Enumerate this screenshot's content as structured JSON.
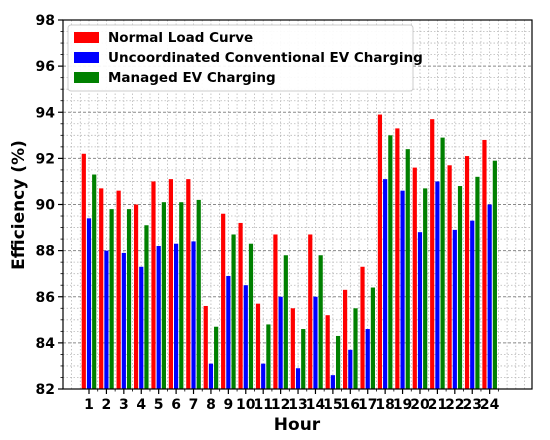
{
  "chart_data": {
    "type": "bar",
    "title": "",
    "xlabel": "Hour",
    "ylabel": "Efficiency (%)",
    "ylim": [
      82,
      98
    ],
    "yticks": [
      82,
      84,
      86,
      88,
      90,
      92,
      94,
      96,
      98
    ],
    "grid": true,
    "legend_position": "top-left",
    "categories": [
      "1",
      "2",
      "3",
      "4",
      "5",
      "6",
      "7",
      "8",
      "9",
      "10",
      "11",
      "12",
      "13",
      "14",
      "15",
      "16",
      "17",
      "18",
      "19",
      "20",
      "21",
      "22",
      "23",
      "24"
    ],
    "series": [
      {
        "name": "Normal Load Curve",
        "color": "#ff0000",
        "values": [
          92.2,
          90.7,
          90.6,
          90.0,
          91.0,
          91.1,
          91.1,
          85.6,
          89.6,
          89.2,
          85.7,
          88.7,
          85.5,
          88.7,
          85.2,
          86.3,
          87.3,
          93.9,
          93.3,
          91.6,
          93.7,
          91.7,
          92.1,
          92.8
        ]
      },
      {
        "name": "Uncoordinated Conventional EV Charging",
        "color": "#0000ff",
        "values": [
          89.4,
          88.0,
          87.9,
          87.3,
          88.2,
          88.3,
          88.4,
          83.1,
          86.9,
          86.5,
          83.1,
          86.0,
          82.9,
          86.0,
          82.6,
          83.7,
          84.6,
          91.1,
          90.6,
          88.8,
          91.0,
          88.9,
          89.3,
          90.0
        ]
      },
      {
        "name": "Managed EV Charging",
        "color": "#008000",
        "values": [
          91.3,
          89.8,
          89.8,
          89.1,
          90.1,
          90.1,
          90.2,
          84.7,
          88.7,
          88.3,
          84.8,
          87.8,
          84.6,
          87.8,
          84.3,
          85.5,
          86.4,
          93.0,
          92.4,
          90.7,
          92.9,
          90.8,
          91.2,
          91.9
        ]
      }
    ]
  }
}
